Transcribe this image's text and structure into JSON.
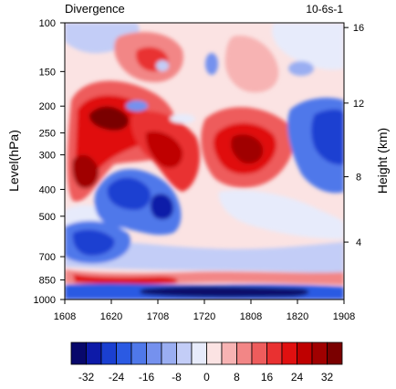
{
  "chart_data": {
    "type": "heatmap",
    "title": "Divergence",
    "units": "10-6s-1",
    "xlabel": "",
    "ylabel": "Level(hPa)",
    "ylabel_right": "Height (km)",
    "x_ticks": [
      "1608",
      "1620",
      "1708",
      "1720",
      "1808",
      "1820",
      "1908"
    ],
    "y_ticks": [
      {
        "label": "100",
        "p": 100
      },
      {
        "label": "150",
        "p": 150
      },
      {
        "label": "200",
        "p": 200
      },
      {
        "label": "250",
        "p": 250
      },
      {
        "label": "300",
        "p": 300
      },
      {
        "label": "400",
        "p": 400
      },
      {
        "label": "500",
        "p": 500
      },
      {
        "label": "700",
        "p": 700
      },
      {
        "label": "850",
        "p": 850
      },
      {
        "label": "1000",
        "p": 1000
      }
    ],
    "y_right_ticks": [
      {
        "label": "16",
        "p": 104
      },
      {
        "label": "12",
        "p": 195
      },
      {
        "label": "8",
        "p": 360
      },
      {
        "label": "4",
        "p": 620
      }
    ],
    "colorbar": {
      "colors": [
        "#08086b",
        "#0d1aa8",
        "#1a3fd1",
        "#2b5ae3",
        "#4f78ea",
        "#7591ee",
        "#9aaef2",
        "#c3cdf7",
        "#e7ebfb",
        "#fbe3e3",
        "#f7b3b3",
        "#f28686",
        "#ee5c5c",
        "#e93131",
        "#e01010",
        "#bf0000",
        "#a00000",
        "#7a0000"
      ],
      "labels": [
        "-32",
        "-24",
        "-16",
        "-8",
        "0",
        "8",
        "16",
        "24",
        "32"
      ]
    },
    "field_levels_approx": [
      {
        "time": "1616",
        "p": 230,
        "value": 32
      },
      {
        "time": "1612",
        "p": 370,
        "value": 24
      },
      {
        "time": "1700",
        "p": 290,
        "value": 16
      },
      {
        "time": "1708",
        "p": 290,
        "value": 20
      },
      {
        "time": "1800",
        "p": 290,
        "value": 28
      },
      {
        "time": "1700",
        "p": 430,
        "value": -24
      },
      {
        "time": "1708",
        "p": 460,
        "value": -16
      },
      {
        "time": "1612",
        "p": 620,
        "value": -16
      },
      {
        "time": "1908",
        "p": 270,
        "value": -24
      },
      {
        "time": "1900",
        "p": 220,
        "value": -16
      },
      {
        "time": "1712",
        "p": 930,
        "value": -24
      },
      {
        "time": "1808",
        "p": 920,
        "value": -32
      },
      {
        "time": "1700",
        "p": 880,
        "value": 16
      },
      {
        "time": "1808",
        "p": 870,
        "value": 8
      },
      {
        "time": "1712",
        "p": 160,
        "value": 16
      },
      {
        "time": "1640",
        "p": 150,
        "value": -8
      }
    ]
  }
}
